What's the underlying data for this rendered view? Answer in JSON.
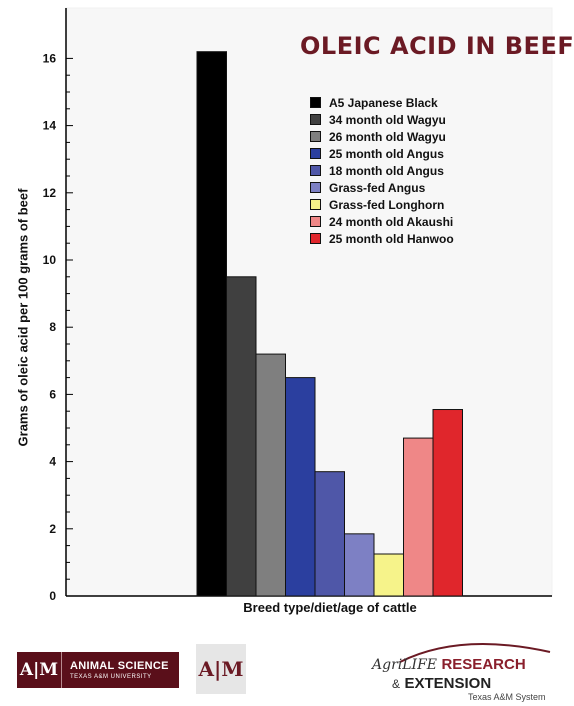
{
  "chart_data": {
    "type": "bar",
    "title": "OLEIC ACID IN BEEF",
    "xlabel": "Breed type/diet/age of cattle",
    "ylabel": "Grams of oleic acid per 100 grams of beef",
    "ylim": [
      0,
      17.5
    ],
    "yticks": [
      0,
      2,
      4,
      6,
      8,
      10,
      12,
      14,
      16
    ],
    "grid": false,
    "legend_position": "top-right",
    "categories": [
      "A5 Japanese Black",
      "34 month old Wagyu",
      "26 month old Wagyu",
      "25 month old Angus",
      "18 month old Angus",
      "Grass-fed Angus",
      "Grass-fed Longhorn",
      "24 month old Akaushi",
      "25 month old Hanwoo"
    ],
    "values": [
      16.2,
      9.5,
      7.2,
      6.5,
      3.7,
      1.85,
      1.25,
      4.7,
      5.55
    ],
    "colors": [
      "#000000",
      "#404040",
      "#7f7f7f",
      "#2b3f9f",
      "#4f57a8",
      "#7d80c4",
      "#f6f38a",
      "#ef8787",
      "#e0262c"
    ]
  },
  "footer": {
    "animal_science_mark": "A|M",
    "animal_science_title": "ANIMAL SCIENCE",
    "animal_science_sub": "TEXAS A&M UNIVERSITY",
    "tamu_mark": "A|M",
    "agrilife_prefix": "AgriLIFE",
    "agrilife_research": "RESEARCH",
    "agrilife_amp": "&",
    "agrilife_extension": "EXTENSION",
    "agrilife_system": "Texas A&M System"
  }
}
